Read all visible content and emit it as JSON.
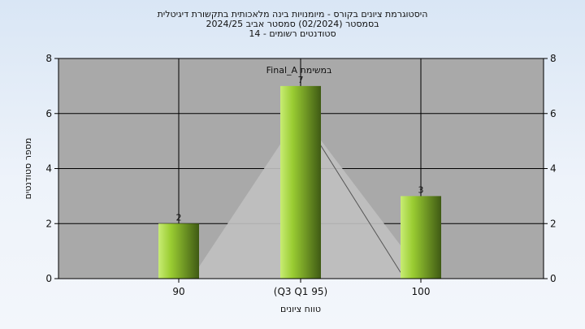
{
  "chart_data": {
    "type": "bar",
    "title_lines": [
      "היסטוגרמת ציונים בקורס - מיומנויות בינה מלאכותית בתקשורת דיגיטלית",
      "בסמסטר  (02/2024)  סמסטר אביב 2024/25",
      "סטודנטים רשומים - 14"
    ],
    "categories": [
      "90",
      "(Q3 Q1 95)",
      "100"
    ],
    "values": [
      2,
      7,
      3
    ],
    "value_labels": [
      "2",
      "7",
      "3"
    ],
    "series_label": "Final_A במשימת",
    "ylabel": "מספר סטודנטים",
    "xlabel": "טווח ציונים",
    "ylim": [
      0,
      8
    ],
    "yticks": [
      0,
      2,
      4,
      6,
      8
    ],
    "grid": true,
    "secondary_y_axis": true,
    "colors": {
      "plot_background": "#a9a9a9",
      "triangle_fill": "#c0c0c0",
      "bar_light": "#c8ec74",
      "bar_mid": "#9acd32",
      "bar_dark": "#3f5a14",
      "gridline": "#000000"
    }
  }
}
